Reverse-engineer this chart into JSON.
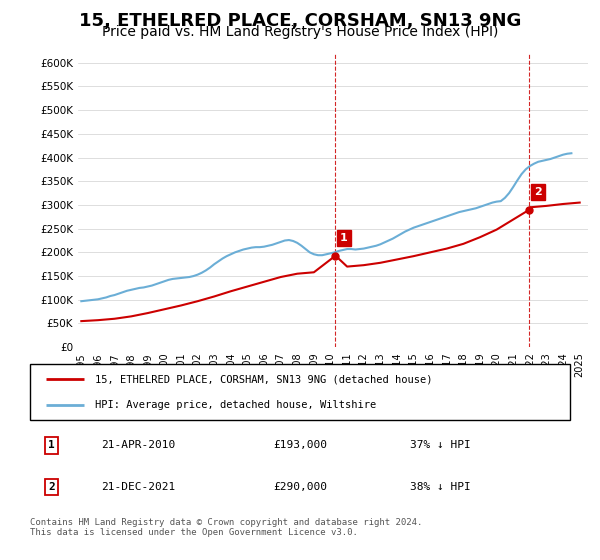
{
  "title": "15, ETHELRED PLACE, CORSHAM, SN13 9NG",
  "subtitle": "Price paid vs. HM Land Registry's House Price Index (HPI)",
  "title_fontsize": 13,
  "subtitle_fontsize": 10,
  "xlim": [
    1994.8,
    2025.5
  ],
  "ylim": [
    0,
    620000
  ],
  "yticks": [
    0,
    50000,
    100000,
    150000,
    200000,
    250000,
    300000,
    350000,
    400000,
    450000,
    500000,
    550000,
    600000
  ],
  "xticks": [
    1995,
    1996,
    1997,
    1998,
    1999,
    2000,
    2001,
    2002,
    2003,
    2004,
    2005,
    2006,
    2007,
    2008,
    2009,
    2010,
    2011,
    2012,
    2013,
    2014,
    2015,
    2016,
    2017,
    2018,
    2019,
    2020,
    2021,
    2022,
    2023,
    2024,
    2025
  ],
  "hpi_color": "#6baed6",
  "price_color": "#cc0000",
  "vline_color": "#cc0000",
  "marker1_date": 2010.3,
  "marker1_label": "1",
  "marker1_y": 193000,
  "marker2_date": 2021.97,
  "marker2_label": "2",
  "marker2_y": 290000,
  "legend_line1": "15, ETHELRED PLACE, CORSHAM, SN13 9NG (detached house)",
  "legend_line2": "HPI: Average price, detached house, Wiltshire",
  "table_rows": [
    [
      "1",
      "21-APR-2010",
      "£193,000",
      "37% ↓ HPI"
    ],
    [
      "2",
      "21-DEC-2021",
      "£290,000",
      "38% ↓ HPI"
    ]
  ],
  "footnote": "Contains HM Land Registry data © Crown copyright and database right 2024.\nThis data is licensed under the Open Government Licence v3.0.",
  "hpi_x": [
    1995.0,
    1995.25,
    1995.5,
    1995.75,
    1996.0,
    1996.25,
    1996.5,
    1996.75,
    1997.0,
    1997.25,
    1997.5,
    1997.75,
    1998.0,
    1998.25,
    1998.5,
    1998.75,
    1999.0,
    1999.25,
    1999.5,
    1999.75,
    2000.0,
    2000.25,
    2000.5,
    2000.75,
    2001.0,
    2001.25,
    2001.5,
    2001.75,
    2002.0,
    2002.25,
    2002.5,
    2002.75,
    2003.0,
    2003.25,
    2003.5,
    2003.75,
    2004.0,
    2004.25,
    2004.5,
    2004.75,
    2005.0,
    2005.25,
    2005.5,
    2005.75,
    2006.0,
    2006.25,
    2006.5,
    2006.75,
    2007.0,
    2007.25,
    2007.5,
    2007.75,
    2008.0,
    2008.25,
    2008.5,
    2008.75,
    2009.0,
    2009.25,
    2009.5,
    2009.75,
    2010.0,
    2010.25,
    2010.5,
    2010.75,
    2011.0,
    2011.25,
    2011.5,
    2011.75,
    2012.0,
    2012.25,
    2012.5,
    2012.75,
    2013.0,
    2013.25,
    2013.5,
    2013.75,
    2014.0,
    2014.25,
    2014.5,
    2014.75,
    2015.0,
    2015.25,
    2015.5,
    2015.75,
    2016.0,
    2016.25,
    2016.5,
    2016.75,
    2017.0,
    2017.25,
    2017.5,
    2017.75,
    2018.0,
    2018.25,
    2018.5,
    2018.75,
    2019.0,
    2019.25,
    2019.5,
    2019.75,
    2020.0,
    2020.25,
    2020.5,
    2020.75,
    2021.0,
    2021.25,
    2021.5,
    2021.75,
    2022.0,
    2022.25,
    2022.5,
    2022.75,
    2023.0,
    2023.25,
    2023.5,
    2023.75,
    2024.0,
    2024.25,
    2024.5
  ],
  "hpi_y": [
    97000,
    98000,
    99000,
    100000,
    101000,
    103000,
    105000,
    108000,
    110000,
    113000,
    116000,
    119000,
    121000,
    123000,
    125000,
    126000,
    128000,
    130000,
    133000,
    136000,
    139000,
    142000,
    144000,
    145000,
    146000,
    147000,
    148000,
    150000,
    153000,
    157000,
    162000,
    168000,
    175000,
    181000,
    187000,
    192000,
    196000,
    200000,
    203000,
    206000,
    208000,
    210000,
    211000,
    211000,
    212000,
    214000,
    216000,
    219000,
    222000,
    225000,
    226000,
    224000,
    220000,
    214000,
    207000,
    200000,
    196000,
    194000,
    194000,
    196000,
    198000,
    200000,
    203000,
    205000,
    207000,
    207000,
    206000,
    207000,
    208000,
    210000,
    212000,
    214000,
    217000,
    221000,
    225000,
    229000,
    234000,
    239000,
    244000,
    248000,
    252000,
    255000,
    258000,
    261000,
    264000,
    267000,
    270000,
    273000,
    276000,
    279000,
    282000,
    285000,
    287000,
    289000,
    291000,
    293000,
    296000,
    299000,
    302000,
    305000,
    307000,
    308000,
    315000,
    325000,
    338000,
    352000,
    365000,
    375000,
    382000,
    387000,
    391000,
    393000,
    395000,
    397000,
    400000,
    403000,
    406000,
    408000,
    409000
  ],
  "price_x": [
    1995,
    1996,
    1997,
    1998,
    1999,
    2000,
    2001,
    2002,
    2003,
    2004,
    2005,
    2006,
    2007,
    2008,
    2009,
    2010.3,
    2011,
    2012,
    2013,
    2014,
    2015,
    2016,
    2017,
    2018,
    2019,
    2020,
    2021.97,
    2022,
    2023,
    2024,
    2025
  ],
  "price_y": [
    55000,
    57000,
    60000,
    65000,
    72000,
    80000,
    88000,
    97000,
    107000,
    118000,
    128000,
    138000,
    148000,
    155000,
    158000,
    193000,
    170000,
    173000,
    178000,
    185000,
    192000,
    200000,
    208000,
    218000,
    232000,
    248000,
    290000,
    295000,
    298000,
    302000,
    305000
  ]
}
